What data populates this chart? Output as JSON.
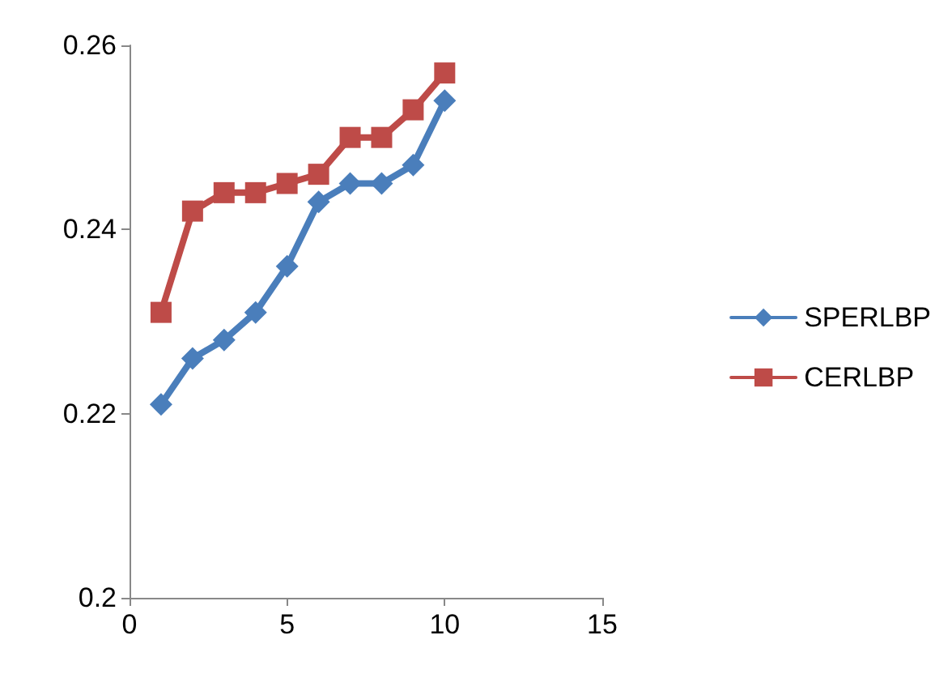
{
  "chart_data": {
    "type": "line",
    "x": [
      1,
      2,
      3,
      4,
      5,
      6,
      7,
      8,
      9,
      10
    ],
    "series": [
      {
        "name": "SPERLBP",
        "color": "#4a7ebb",
        "marker": "diamond",
        "values": [
          0.221,
          0.226,
          0.228,
          0.231,
          0.236,
          0.243,
          0.245,
          0.245,
          0.247,
          0.254
        ]
      },
      {
        "name": "CERLBP",
        "color": "#be4b48",
        "marker": "square",
        "values": [
          0.231,
          0.242,
          0.244,
          0.244,
          0.245,
          0.246,
          0.25,
          0.25,
          0.253,
          0.257
        ]
      }
    ],
    "xlim": [
      0,
      15
    ],
    "xticks": [
      0,
      5,
      10,
      15
    ],
    "ylim": [
      0.2,
      0.26
    ],
    "yticks": [
      0.2,
      0.22,
      0.24,
      0.26
    ],
    "grid": false,
    "legend": "right",
    "line_style": "solid"
  }
}
